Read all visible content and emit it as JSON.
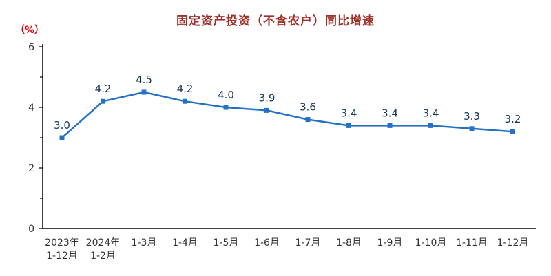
{
  "chart_data": {
    "type": "line",
    "title": "固定资产投资（不含农户）同比增速",
    "ylabel": "（%）",
    "xlabel": "",
    "ylim": [
      0,
      6
    ],
    "yticks": [
      0,
      2,
      4,
      6
    ],
    "minor_yticks": [
      1,
      3,
      5
    ],
    "grid": false,
    "legend_position": "none",
    "categories": [
      [
        "2023年",
        "1-12月"
      ],
      [
        "2024年",
        "1-2月"
      ],
      [
        "1-3月"
      ],
      [
        "1-4月"
      ],
      [
        "1-5月"
      ],
      [
        "1-6月"
      ],
      [
        "1-7月"
      ],
      [
        "1-8月"
      ],
      [
        "1-9月"
      ],
      [
        "1-10月"
      ],
      [
        "1-11月"
      ],
      [
        "1-12月"
      ]
    ],
    "values": [
      3.0,
      4.2,
      4.5,
      4.2,
      4.0,
      3.9,
      3.6,
      3.4,
      3.4,
      3.4,
      3.3,
      3.2
    ],
    "value_labels": [
      "3.0",
      "4.2",
      "4.5",
      "4.2",
      "4.0",
      "3.9",
      "3.6",
      "3.4",
      "3.4",
      "3.4",
      "3.3",
      "3.2"
    ],
    "colors": {
      "line": "#2472c8",
      "marker": "#2472c8",
      "value_label": "#17375e",
      "title": "#a03028",
      "unit": "#e60012",
      "axis": "#000000",
      "tick_label": "#333333"
    }
  }
}
